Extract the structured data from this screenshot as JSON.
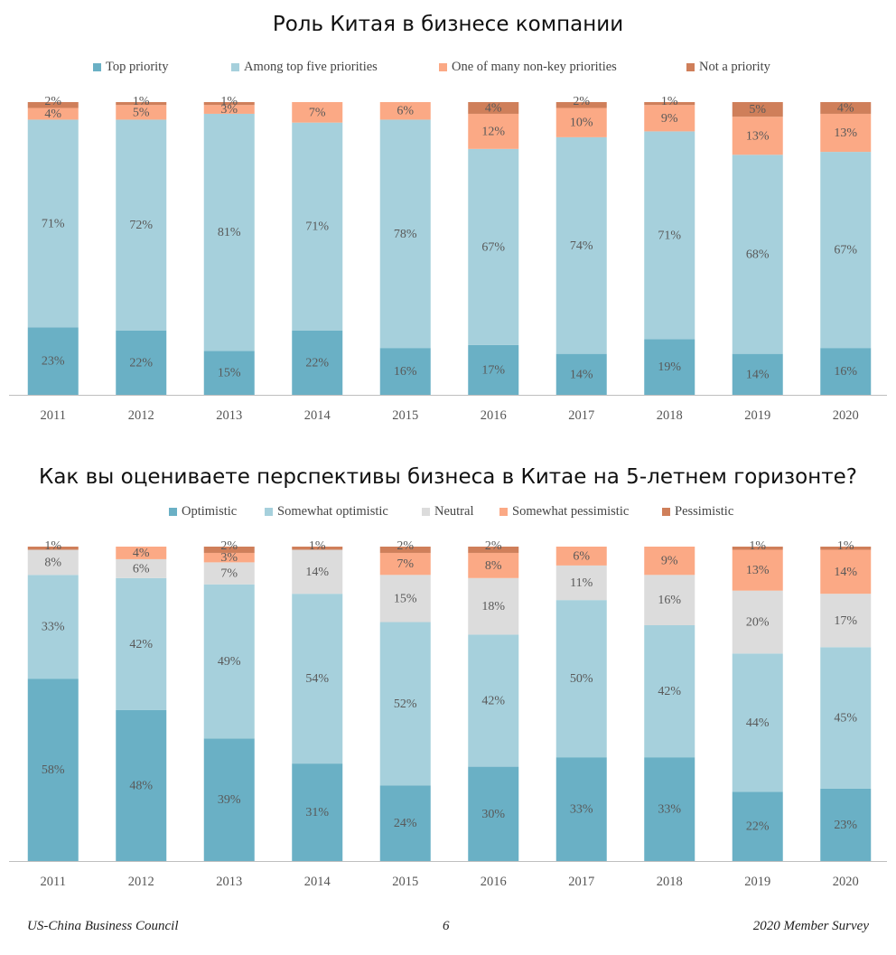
{
  "colors": {
    "teal": "#6ab0c5",
    "light_blue": "#a6d0dc",
    "gray": "#dcdcdc",
    "salmon": "#fba985",
    "brown": "#cf7f5a"
  },
  "chart_data": [
    {
      "type": "bar",
      "stacked": true,
      "title": "Роль Китая в бизнесе компании",
      "categories": [
        "2011",
        "2012",
        "2013",
        "2014",
        "2015",
        "2016",
        "2017",
        "2018",
        "2019",
        "2020"
      ],
      "series": [
        {
          "name": "Top priority",
          "color": "#6ab0c5",
          "values": [
            23,
            22,
            15,
            22,
            16,
            17,
            14,
            19,
            14,
            16
          ]
        },
        {
          "name": "Among top five priorities",
          "color": "#a6d0dc",
          "values": [
            71,
            72,
            81,
            71,
            78,
            67,
            74,
            71,
            68,
            67
          ]
        },
        {
          "name": "One of many non-key priorities",
          "color": "#fba985",
          "values": [
            4,
            5,
            3,
            7,
            6,
            12,
            10,
            9,
            13,
            13
          ]
        },
        {
          "name": "Not a priority",
          "color": "#cf7f5a",
          "values": [
            2,
            1,
            1,
            null,
            null,
            4,
            2,
            1,
            5,
            4
          ]
        }
      ],
      "ylim": [
        0,
        100
      ],
      "legend": "top"
    },
    {
      "type": "bar",
      "stacked": true,
      "title": "Как вы оцениваете перспективы бизнеса в Китае на 5-летнем горизонте?",
      "categories": [
        "2011",
        "2012",
        "2013",
        "2014",
        "2015",
        "2016",
        "2017",
        "2018",
        "2019",
        "2020"
      ],
      "series": [
        {
          "name": "Optimistic",
          "color": "#6ab0c5",
          "values": [
            58,
            48,
            39,
            31,
            24,
            30,
            33,
            33,
            22,
            23
          ]
        },
        {
          "name": "Somewhat optimistic",
          "color": "#a6d0dc",
          "values": [
            33,
            42,
            49,
            54,
            52,
            42,
            50,
            42,
            44,
            45
          ]
        },
        {
          "name": "Neutral",
          "color": "#dcdcdc",
          "values": [
            8,
            6,
            7,
            14,
            15,
            18,
            11,
            16,
            20,
            17
          ]
        },
        {
          "name": "Somewhat pessimistic",
          "color": "#fba985",
          "values": [
            null,
            4,
            3,
            null,
            7,
            8,
            6,
            9,
            13,
            14
          ]
        },
        {
          "name": "Pessimistic",
          "color": "#cf7f5a",
          "values": [
            1,
            null,
            2,
            1,
            2,
            2,
            null,
            null,
            1,
            1
          ]
        }
      ],
      "ylim": [
        0,
        100
      ],
      "legend": "top"
    }
  ],
  "footer": {
    "left": "US-China Business Council",
    "center": "6",
    "right": "2020 Member Survey"
  }
}
